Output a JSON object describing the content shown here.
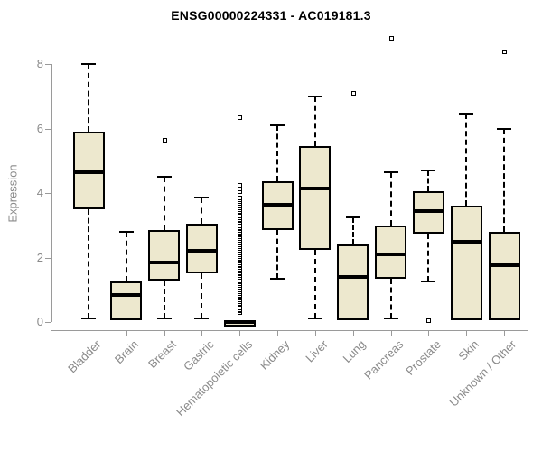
{
  "title": "ENSG00000224331 - AC019181.3",
  "colors": {
    "box_fill": "#EDE8CE",
    "box_border": "#000000",
    "median": "#000000",
    "axis": "#9a9a9a",
    "axis_text": "#8a8a8a",
    "title_text": "#000000",
    "background": "#ffffff"
  },
  "chart_data": {
    "type": "boxplot",
    "title": "ENSG00000224331 - AC019181.3",
    "xlabel": "",
    "ylabel": "Expression",
    "ylim": [
      0,
      8.85
    ],
    "yticks": [
      0,
      2,
      4,
      6,
      8
    ],
    "grid": false,
    "legend": "none",
    "categories": [
      "Bladder",
      "Brain",
      "Breast",
      "Gastric",
      "Hematopoietic cells",
      "Kidney",
      "Liver",
      "Lung",
      "Pancreas",
      "Prostate",
      "Skin",
      "Unknown / Other"
    ],
    "series": [
      {
        "name": "Bladder",
        "whisker_low": 0.1,
        "q1": 3.5,
        "median": 4.65,
        "q3": 5.9,
        "whisker_high": 8.0,
        "outliers": []
      },
      {
        "name": "Brain",
        "whisker_low": 0.05,
        "q1": 0.05,
        "median": 0.85,
        "q3": 1.25,
        "whisker_high": 2.8,
        "outliers": []
      },
      {
        "name": "Breast",
        "whisker_low": 0.1,
        "q1": 1.3,
        "median": 1.85,
        "q3": 2.85,
        "whisker_high": 4.5,
        "outliers": [
          5.65
        ]
      },
      {
        "name": "Gastric",
        "whisker_low": 0.1,
        "q1": 1.5,
        "median": 2.2,
        "q3": 3.05,
        "whisker_high": 3.85,
        "outliers": []
      },
      {
        "name": "Hematopoietic cells",
        "whisker_low": 0,
        "q1": 0,
        "median": 0,
        "q3": 0,
        "whisker_high": 0,
        "outliers": [
          0.3,
          0.35,
          0.4,
          0.45,
          0.5,
          0.55,
          0.6,
          0.65,
          0.7,
          0.75,
          0.8,
          0.85,
          0.9,
          0.95,
          1.0,
          1.05,
          1.1,
          1.15,
          1.2,
          1.25,
          1.3,
          1.35,
          1.4,
          1.45,
          1.5,
          1.55,
          1.6,
          1.65,
          1.7,
          1.75,
          1.8,
          1.85,
          1.9,
          1.95,
          2.0,
          2.05,
          2.1,
          2.15,
          2.2,
          2.25,
          2.3,
          2.35,
          2.4,
          2.45,
          2.5,
          2.55,
          2.6,
          2.65,
          2.7,
          2.75,
          2.8,
          2.85,
          2.9,
          2.95,
          3.0,
          3.05,
          3.1,
          3.15,
          3.2,
          3.25,
          3.3,
          3.35,
          3.4,
          3.45,
          3.5,
          3.55,
          3.6,
          3.65,
          3.7,
          3.75,
          3.8,
          3.85,
          4.05,
          4.15,
          4.25,
          6.35
        ]
      },
      {
        "name": "Kidney",
        "whisker_low": 1.35,
        "q1": 2.85,
        "median": 3.65,
        "q3": 4.35,
        "whisker_high": 6.1,
        "outliers": []
      },
      {
        "name": "Liver",
        "whisker_low": 0.1,
        "q1": 2.25,
        "median": 4.15,
        "q3": 5.45,
        "whisker_high": 7.0,
        "outliers": []
      },
      {
        "name": "Lung",
        "whisker_low": 0.05,
        "q1": 0.05,
        "median": 1.4,
        "q3": 2.4,
        "whisker_high": 3.25,
        "outliers": [
          7.1
        ]
      },
      {
        "name": "Pancreas",
        "whisker_low": 0.1,
        "q1": 1.35,
        "median": 2.1,
        "q3": 3.0,
        "whisker_high": 4.65,
        "outliers": [
          8.8
        ]
      },
      {
        "name": "Prostate",
        "whisker_low": 1.25,
        "q1": 2.75,
        "median": 3.45,
        "q3": 4.05,
        "whisker_high": 4.7,
        "outliers": [
          0.05
        ]
      },
      {
        "name": "Skin",
        "whisker_low": 0.05,
        "q1": 0.05,
        "median": 2.5,
        "q3": 3.6,
        "whisker_high": 6.45,
        "outliers": []
      },
      {
        "name": "Unknown / Other",
        "whisker_low": 0.05,
        "q1": 0.05,
        "median": 1.75,
        "q3": 2.8,
        "whisker_high": 6.0,
        "outliers": [
          8.4
        ]
      }
    ]
  }
}
